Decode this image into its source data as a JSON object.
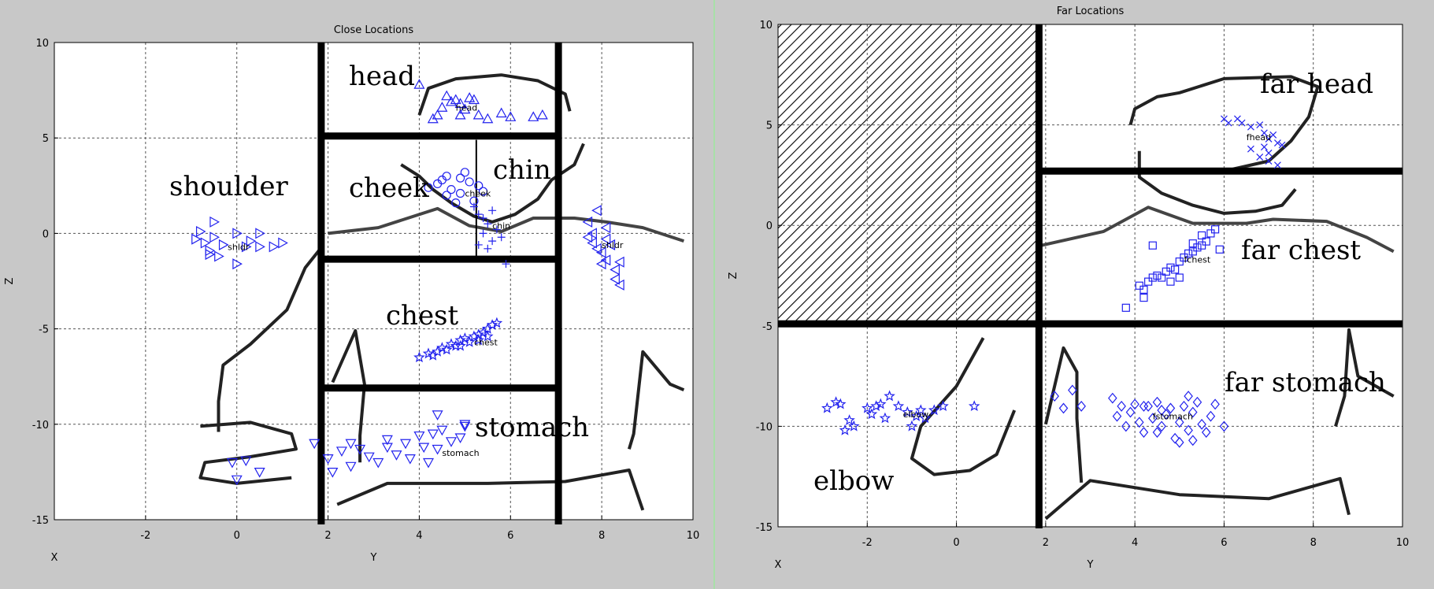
{
  "chart_data": [
    {
      "type": "scatter",
      "title": "Close Locations",
      "xlabel": "Y",
      "ylabel": "Z",
      "corner_label": "X",
      "xlim": [
        -4,
        10
      ],
      "ylim": [
        -15,
        10
      ],
      "xticks": [
        -2,
        0,
        2,
        4,
        6,
        8,
        10
      ],
      "yticks": [
        -15,
        -10,
        -5,
        0,
        5,
        10
      ],
      "grid": true,
      "region_labels": [
        "head",
        "cheek",
        "chin",
        "shoulder",
        "chest",
        "stomach"
      ],
      "series": [
        {
          "label": "head",
          "marker": "triangle-up",
          "center": [
            4.8,
            6.6
          ],
          "points": [
            [
              4.0,
              7.8
            ],
            [
              4.4,
              6.2
            ],
            [
              4.5,
              6.6
            ],
            [
              4.7,
              6.9
            ],
            [
              4.8,
              7.0
            ],
            [
              4.9,
              6.8
            ],
            [
              4.6,
              7.2
            ],
            [
              5.0,
              6.5
            ],
            [
              5.2,
              7.0
            ],
            [
              5.3,
              6.2
            ],
            [
              5.5,
              6.0
            ],
            [
              5.1,
              7.1
            ],
            [
              6.0,
              6.1
            ],
            [
              6.5,
              6.1
            ],
            [
              6.7,
              6.2
            ],
            [
              5.8,
              6.3
            ],
            [
              4.3,
              6.0
            ],
            [
              4.9,
              6.2
            ]
          ]
        },
        {
          "label": "cheek",
          "marker": "circle",
          "center": [
            5.0,
            2.1
          ],
          "points": [
            [
              4.2,
              2.4
            ],
            [
              4.4,
              2.6
            ],
            [
              4.5,
              2.8
            ],
            [
              4.6,
              3.0
            ],
            [
              4.7,
              2.3
            ],
            [
              4.9,
              2.1
            ],
            [
              5.0,
              3.2
            ],
            [
              5.1,
              2.7
            ],
            [
              5.3,
              2.5
            ],
            [
              4.6,
              2.0
            ],
            [
              4.8,
              1.6
            ],
            [
              5.2,
              1.7
            ],
            [
              4.9,
              2.9
            ],
            [
              5.4,
              2.2
            ]
          ]
        },
        {
          "label": "chin",
          "marker": "plus",
          "center": [
            5.6,
            0.4
          ],
          "points": [
            [
              5.2,
              1.4
            ],
            [
              5.3,
              1.0
            ],
            [
              5.4,
              0.8
            ],
            [
              5.5,
              0.5
            ],
            [
              5.4,
              0.0
            ],
            [
              5.6,
              -0.4
            ],
            [
              5.5,
              -0.8
            ],
            [
              5.7,
              0.2
            ],
            [
              5.8,
              -0.2
            ],
            [
              5.9,
              -1.6
            ],
            [
              5.3,
              -0.6
            ],
            [
              5.6,
              1.2
            ]
          ]
        },
        {
          "label": "shldr",
          "marker": "triangle-right",
          "center": [
            -0.2,
            -0.7
          ],
          "points": [
            [
              -0.9,
              -0.3
            ],
            [
              -0.8,
              0.1
            ],
            [
              -0.7,
              -0.5
            ],
            [
              -0.6,
              -0.9
            ],
            [
              -0.5,
              0.6
            ],
            [
              -0.5,
              -0.2
            ],
            [
              -0.4,
              -1.2
            ],
            [
              -0.3,
              -0.6
            ],
            [
              0.0,
              0.0
            ],
            [
              0.0,
              -1.6
            ],
            [
              0.2,
              -0.7
            ],
            [
              0.5,
              0.0
            ],
            [
              0.5,
              -0.7
            ],
            [
              0.8,
              -0.7
            ],
            [
              1.0,
              -0.5
            ],
            [
              -0.6,
              -1.1
            ],
            [
              0.3,
              -0.4
            ]
          ]
        },
        {
          "label": "shldr",
          "marker": "triangle-left",
          "center": [
            8.0,
            -0.6
          ],
          "points": [
            [
              7.7,
              0.6
            ],
            [
              7.8,
              0.0
            ],
            [
              7.8,
              -0.5
            ],
            [
              7.9,
              -0.8
            ],
            [
              8.0,
              -1.0
            ],
            [
              8.1,
              -0.3
            ],
            [
              8.1,
              -1.4
            ],
            [
              8.2,
              -0.6
            ],
            [
              7.7,
              -0.2
            ],
            [
              8.3,
              -1.9
            ],
            [
              8.4,
              -1.5
            ],
            [
              7.9,
              1.2
            ],
            [
              8.0,
              -1.6
            ],
            [
              8.4,
              -2.7
            ],
            [
              8.3,
              -2.4
            ],
            [
              8.1,
              0.3
            ]
          ]
        },
        {
          "label": "chest",
          "marker": "star",
          "center": [
            5.2,
            -5.7
          ],
          "points": [
            [
              4.0,
              -6.5
            ],
            [
              4.2,
              -6.3
            ],
            [
              4.4,
              -6.2
            ],
            [
              4.5,
              -6.0
            ],
            [
              4.6,
              -6.1
            ],
            [
              4.7,
              -5.8
            ],
            [
              4.8,
              -5.9
            ],
            [
              4.9,
              -5.6
            ],
            [
              5.0,
              -5.5
            ],
            [
              5.1,
              -5.7
            ],
            [
              5.2,
              -5.4
            ],
            [
              5.3,
              -5.3
            ],
            [
              5.4,
              -5.2
            ],
            [
              5.5,
              -5.0
            ],
            [
              5.6,
              -4.8
            ],
            [
              5.7,
              -4.7
            ],
            [
              4.3,
              -6.4
            ],
            [
              4.9,
              -5.9
            ],
            [
              5.3,
              -5.6
            ],
            [
              5.5,
              -5.4
            ]
          ]
        },
        {
          "label": "stomach",
          "marker": "triangle-down",
          "center": [
            4.5,
            -11.5
          ],
          "points": [
            [
              1.7,
              -11.0
            ],
            [
              2.0,
              -11.8
            ],
            [
              2.1,
              -12.5
            ],
            [
              2.3,
              -11.4
            ],
            [
              2.5,
              -12.2
            ],
            [
              2.7,
              -11.3
            ],
            [
              2.9,
              -11.7
            ],
            [
              3.1,
              -12.0
            ],
            [
              3.3,
              -11.2
            ],
            [
              3.5,
              -11.6
            ],
            [
              3.7,
              -11.0
            ],
            [
              3.8,
              -11.8
            ],
            [
              4.0,
              -10.6
            ],
            [
              4.1,
              -11.2
            ],
            [
              4.3,
              -10.5
            ],
            [
              4.4,
              -11.3
            ],
            [
              4.5,
              -10.3
            ],
            [
              4.7,
              -10.9
            ],
            [
              4.9,
              -10.7
            ],
            [
              5.0,
              -10.0
            ],
            [
              4.2,
              -12.0
            ],
            [
              3.3,
              -10.8
            ],
            [
              4.4,
              -9.5
            ],
            [
              2.5,
              -11.0
            ],
            [
              5.0,
              -10.1
            ]
          ]
        },
        {
          "label": "",
          "marker": "triangle-down",
          "center": [
            0.0,
            -12.0
          ],
          "points": [
            [
              -0.1,
              -12.0
            ],
            [
              0.0,
              -12.9
            ],
            [
              0.2,
              -11.9
            ],
            [
              0.5,
              -12.5
            ]
          ]
        }
      ]
    },
    {
      "type": "scatter",
      "title": "Far Locations",
      "xlabel": "Y",
      "ylabel": "Z",
      "corner_label": "X",
      "xlim": [
        -4,
        10
      ],
      "ylim": [
        -15,
        10
      ],
      "xticks": [
        -2,
        0,
        2,
        4,
        6,
        8,
        10
      ],
      "yticks": [
        -15,
        -10,
        -5,
        0,
        5,
        10
      ],
      "grid": true,
      "region_labels": [
        "far head",
        "far chest",
        "far stomach",
        "elbow"
      ],
      "series": [
        {
          "label": "fhead",
          "marker": "x",
          "center": [
            6.5,
            4.4
          ],
          "points": [
            [
              6.0,
              5.3
            ],
            [
              6.1,
              5.1
            ],
            [
              6.3,
              5.3
            ],
            [
              6.4,
              5.1
            ],
            [
              6.6,
              4.9
            ],
            [
              6.8,
              5.0
            ],
            [
              6.9,
              4.6
            ],
            [
              7.0,
              4.3
            ],
            [
              7.1,
              4.5
            ],
            [
              7.2,
              4.1
            ],
            [
              7.3,
              4.0
            ],
            [
              7.0,
              3.6
            ],
            [
              6.8,
              3.4
            ],
            [
              6.6,
              3.8
            ],
            [
              7.2,
              3.0
            ],
            [
              7.0,
              3.2
            ],
            [
              6.9,
              3.9
            ]
          ]
        },
        {
          "label": "fchest",
          "marker": "square",
          "center": [
            5.1,
            -1.7
          ],
          "points": [
            [
              4.1,
              -3.0
            ],
            [
              4.2,
              -3.2
            ],
            [
              4.3,
              -2.8
            ],
            [
              4.4,
              -2.6
            ],
            [
              4.5,
              -2.5
            ],
            [
              4.6,
              -2.6
            ],
            [
              4.7,
              -2.3
            ],
            [
              4.8,
              -2.1
            ],
            [
              4.9,
              -2.2
            ],
            [
              5.0,
              -1.8
            ],
            [
              5.1,
              -1.6
            ],
            [
              5.2,
              -1.4
            ],
            [
              5.3,
              -1.3
            ],
            [
              5.4,
              -1.1
            ],
            [
              5.5,
              -1.0
            ],
            [
              5.6,
              -0.8
            ],
            [
              5.7,
              -0.4
            ],
            [
              5.8,
              -0.2
            ],
            [
              5.5,
              -0.5
            ],
            [
              4.4,
              -1.0
            ],
            [
              5.0,
              -2.6
            ],
            [
              4.8,
              -2.8
            ],
            [
              5.3,
              -0.9
            ],
            [
              5.9,
              -1.2
            ],
            [
              3.8,
              -4.1
            ],
            [
              4.2,
              -3.6
            ]
          ]
        },
        {
          "label": "fstomach",
          "marker": "diamond",
          "center": [
            4.4,
            -9.5
          ],
          "points": [
            [
              2.2,
              -8.5
            ],
            [
              2.4,
              -9.1
            ],
            [
              2.6,
              -8.2
            ],
            [
              2.8,
              -9.0
            ],
            [
              3.5,
              -8.6
            ],
            [
              3.6,
              -9.5
            ],
            [
              3.7,
              -9.0
            ],
            [
              3.8,
              -10.0
            ],
            [
              3.9,
              -9.3
            ],
            [
              4.0,
              -8.9
            ],
            [
              4.1,
              -9.8
            ],
            [
              4.2,
              -10.3
            ],
            [
              4.3,
              -9.0
            ],
            [
              4.4,
              -9.6
            ],
            [
              4.5,
              -8.8
            ],
            [
              4.6,
              -10.0
            ],
            [
              4.7,
              -9.4
            ],
            [
              4.8,
              -9.1
            ],
            [
              4.9,
              -10.6
            ],
            [
              5.0,
              -9.8
            ],
            [
              5.1,
              -9.0
            ],
            [
              5.2,
              -10.2
            ],
            [
              5.3,
              -9.3
            ],
            [
              5.4,
              -8.8
            ],
            [
              5.5,
              -9.9
            ],
            [
              5.6,
              -10.3
            ],
            [
              5.7,
              -9.5
            ],
            [
              5.8,
              -8.9
            ],
            [
              6.0,
              -10.0
            ],
            [
              5.0,
              -10.8
            ],
            [
              4.2,
              -9.0
            ],
            [
              4.5,
              -10.3
            ],
            [
              5.2,
              -8.5
            ],
            [
              5.3,
              -10.7
            ],
            [
              4.6,
              -9.2
            ]
          ]
        },
        {
          "label": "elbow",
          "marker": "star",
          "center": [
            -1.2,
            -9.4
          ],
          "points": [
            [
              -2.9,
              -9.1
            ],
            [
              -2.7,
              -8.8
            ],
            [
              -2.5,
              -10.2
            ],
            [
              -2.4,
              -9.7
            ],
            [
              -2.3,
              -10.0
            ],
            [
              -2.0,
              -9.1
            ],
            [
              -1.9,
              -9.4
            ],
            [
              -1.8,
              -9.0
            ],
            [
              -1.6,
              -9.6
            ],
            [
              -1.5,
              -8.5
            ],
            [
              -1.3,
              -9.0
            ],
            [
              -1.1,
              -9.3
            ],
            [
              -1.0,
              -10.0
            ],
            [
              -0.8,
              -9.2
            ],
            [
              -0.7,
              -9.6
            ],
            [
              -0.5,
              -9.2
            ],
            [
              -0.3,
              -9.0
            ],
            [
              0.4,
              -9.0
            ],
            [
              -1.7,
              -8.9
            ],
            [
              -0.9,
              -9.5
            ],
            [
              -2.6,
              -8.9
            ]
          ]
        }
      ]
    }
  ]
}
